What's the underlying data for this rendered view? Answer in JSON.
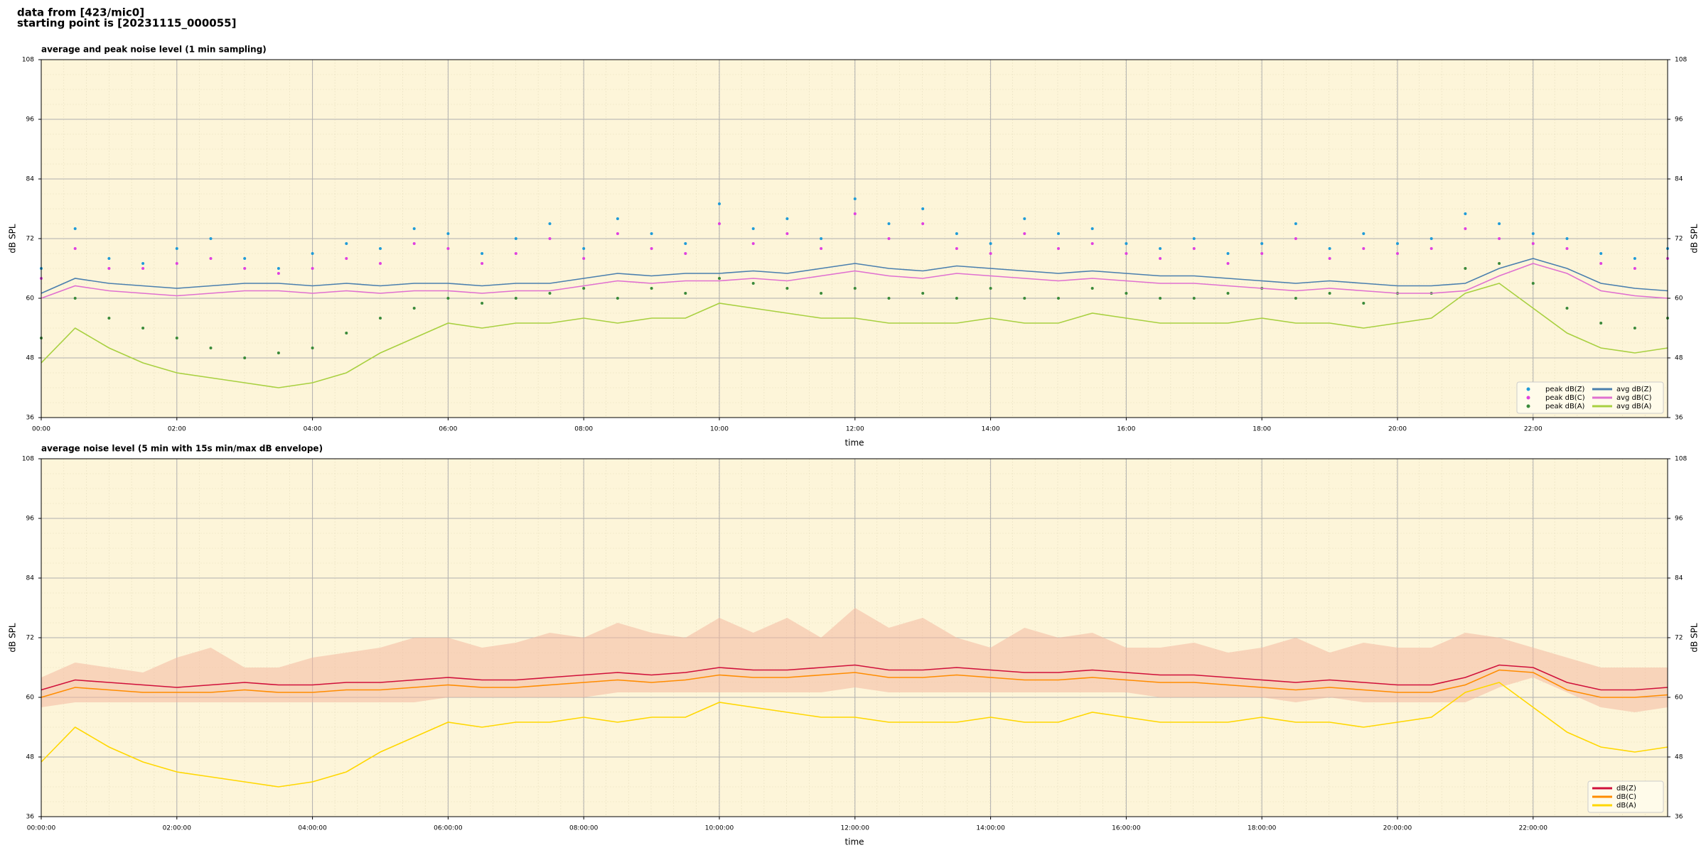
{
  "header": {
    "lines": [
      "data from [423/mic0]",
      "starting point is [20231115_000055]"
    ]
  },
  "chart_data": [
    {
      "type": "line",
      "title": "average and peak noise level (1 min sampling)",
      "xlabel": "time",
      "ylabel": "dB SPL",
      "x": [
        "00:00",
        "00:30",
        "01:00",
        "01:30",
        "02:00",
        "02:30",
        "03:00",
        "03:30",
        "04:00",
        "04:30",
        "05:00",
        "05:30",
        "06:00",
        "06:30",
        "07:00",
        "07:30",
        "08:00",
        "08:30",
        "09:00",
        "09:30",
        "10:00",
        "10:30",
        "11:00",
        "11:30",
        "12:00",
        "12:30",
        "13:00",
        "13:30",
        "14:00",
        "14:30",
        "15:00",
        "15:30",
        "16:00",
        "16:30",
        "17:00",
        "17:30",
        "18:00",
        "18:30",
        "19:00",
        "19:30",
        "20:00",
        "20:30",
        "21:00",
        "21:30",
        "22:00",
        "22:30",
        "23:00",
        "23:30",
        "23:59"
      ],
      "xlim": [
        "00:00",
        "23:59"
      ],
      "xticks": [
        "00:00",
        "02:00",
        "04:00",
        "06:00",
        "08:00",
        "10:00",
        "12:00",
        "14:00",
        "16:00",
        "18:00",
        "20:00",
        "22:00"
      ],
      "ylim": [
        36,
        108
      ],
      "yticks": [
        36,
        48,
        60,
        72,
        84,
        96,
        108
      ],
      "grid": true,
      "legend": "lower right",
      "legend_columns": 2,
      "series": [
        {
          "name": "peak dB(Z)",
          "kind": "scatter",
          "color": "#1f9bd8",
          "values": [
            66,
            74,
            68,
            67,
            70,
            72,
            68,
            66,
            69,
            71,
            70,
            74,
            73,
            69,
            72,
            75,
            70,
            76,
            73,
            71,
            79,
            74,
            76,
            72,
            80,
            75,
            78,
            73,
            71,
            76,
            73,
            74,
            71,
            70,
            72,
            69,
            71,
            75,
            70,
            73,
            71,
            72,
            77,
            75,
            73,
            72,
            69,
            68,
            70
          ]
        },
        {
          "name": "peak dB(C)",
          "kind": "scatter",
          "color": "#e040e0",
          "values": [
            64,
            70,
            66,
            66,
            67,
            68,
            66,
            65,
            66,
            68,
            67,
            71,
            70,
            67,
            69,
            72,
            68,
            73,
            70,
            69,
            75,
            71,
            73,
            70,
            77,
            72,
            75,
            70,
            69,
            73,
            70,
            71,
            69,
            68,
            70,
            67,
            69,
            72,
            68,
            70,
            69,
            70,
            74,
            72,
            71,
            70,
            67,
            66,
            68
          ]
        },
        {
          "name": "peak dB(A)",
          "kind": "scatter",
          "color": "#3a8a3a",
          "values": [
            52,
            60,
            56,
            54,
            52,
            50,
            48,
            49,
            50,
            53,
            56,
            58,
            60,
            59,
            60,
            61,
            62,
            60,
            62,
            61,
            64,
            63,
            62,
            61,
            62,
            60,
            61,
            60,
            62,
            60,
            60,
            62,
            61,
            60,
            60,
            61,
            62,
            60,
            61,
            59,
            61,
            61,
            66,
            67,
            63,
            58,
            55,
            54,
            56
          ]
        },
        {
          "name": "avg dB(Z)",
          "kind": "line",
          "color": "#4a7fae",
          "values": [
            61,
            64,
            63,
            62.5,
            62,
            62.5,
            63,
            63,
            62.5,
            63,
            62.5,
            63,
            63,
            62.5,
            63,
            63,
            64,
            65,
            64.5,
            65,
            65,
            65.5,
            65,
            66,
            67,
            66,
            65.5,
            66.5,
            66,
            65.5,
            65,
            65.5,
            65,
            64.5,
            64.5,
            64,
            63.5,
            63,
            63.5,
            63,
            62.5,
            62.5,
            63,
            66,
            68,
            66,
            63,
            62,
            61.5
          ]
        },
        {
          "name": "avg dB(C)",
          "kind": "line",
          "color": "#e070d0",
          "values": [
            60,
            62.5,
            61.5,
            61,
            60.5,
            61,
            61.5,
            61.5,
            61,
            61.5,
            61,
            61.5,
            61.5,
            61,
            61.5,
            61.5,
            62.5,
            63.5,
            63,
            63.5,
            63.5,
            64,
            63.5,
            64.5,
            65.5,
            64.5,
            64,
            65,
            64.5,
            64,
            63.5,
            64,
            63.5,
            63,
            63,
            62.5,
            62,
            61.5,
            62,
            61.5,
            61,
            61,
            61.5,
            64.5,
            67,
            65,
            61.5,
            60.5,
            60
          ]
        },
        {
          "name": "avg dB(A)",
          "kind": "line",
          "color": "#a8d040",
          "values": [
            47,
            54,
            50,
            47,
            45,
            44,
            43,
            42,
            43,
            45,
            49,
            52,
            55,
            54,
            55,
            55,
            56,
            55,
            56,
            56,
            59,
            58,
            57,
            56,
            56,
            55,
            55,
            55,
            56,
            55,
            55,
            57,
            56,
            55,
            55,
            55,
            56,
            55,
            55,
            54,
            55,
            56,
            61,
            63,
            58,
            53,
            50,
            49,
            50
          ]
        }
      ]
    },
    {
      "type": "line",
      "title": "average noise level (5 min with 15s min/max dB envelope)",
      "xlabel": "time",
      "ylabel": "dB SPL",
      "x": [
        "00:00:00",
        "00:30:00",
        "01:00:00",
        "01:30:00",
        "02:00:00",
        "02:30:00",
        "03:00:00",
        "03:30:00",
        "04:00:00",
        "04:30:00",
        "05:00:00",
        "05:30:00",
        "06:00:00",
        "06:30:00",
        "07:00:00",
        "07:30:00",
        "08:00:00",
        "08:30:00",
        "09:00:00",
        "09:30:00",
        "10:00:00",
        "10:30:00",
        "11:00:00",
        "11:30:00",
        "12:00:00",
        "12:30:00",
        "13:00:00",
        "13:30:00",
        "14:00:00",
        "14:30:00",
        "15:00:00",
        "15:30:00",
        "16:00:00",
        "16:30:00",
        "17:00:00",
        "17:30:00",
        "18:00:00",
        "18:30:00",
        "19:00:00",
        "19:30:00",
        "20:00:00",
        "20:30:00",
        "21:00:00",
        "21:30:00",
        "22:00:00",
        "22:30:00",
        "23:00:00",
        "23:30:00",
        "23:59:00"
      ],
      "xlim": [
        "00:00:00",
        "23:59:00"
      ],
      "xticks": [
        "00:00:00",
        "02:00:00",
        "04:00:00",
        "06:00:00",
        "08:00:00",
        "10:00:00",
        "12:00:00",
        "14:00:00",
        "16:00:00",
        "18:00:00",
        "20:00:00",
        "22:00:00"
      ],
      "ylim": [
        36,
        108
      ],
      "yticks": [
        36,
        48,
        60,
        72,
        84,
        96,
        108
      ],
      "grid": true,
      "legend": "lower right",
      "legend_columns": 1,
      "envelope": {
        "color": "#f4b8a0",
        "upper": [
          64,
          67,
          66,
          65,
          68,
          70,
          66,
          66,
          68,
          69,
          70,
          72,
          72,
          70,
          71,
          73,
          72,
          75,
          73,
          72,
          76,
          73,
          76,
          72,
          78,
          74,
          76,
          72,
          70,
          74,
          72,
          73,
          70,
          70,
          71,
          69,
          70,
          72,
          69,
          71,
          70,
          70,
          73,
          72,
          70,
          68,
          66,
          66,
          66
        ],
        "lower": [
          58,
          59,
          59,
          59,
          59,
          59,
          59,
          59,
          59,
          59,
          59,
          59,
          60,
          60,
          60,
          60,
          60,
          61,
          61,
          61,
          61,
          61,
          61,
          61,
          62,
          61,
          61,
          61,
          61,
          61,
          61,
          61,
          61,
          60,
          60,
          60,
          60,
          59,
          60,
          59,
          59,
          59,
          59,
          62,
          64,
          61,
          58,
          57,
          58
        ]
      },
      "series": [
        {
          "name": "dB(Z)",
          "kind": "line",
          "color": "#d0103a",
          "values": [
            61.5,
            63.5,
            63,
            62.5,
            62,
            62.5,
            63,
            62.5,
            62.5,
            63,
            63,
            63.5,
            64,
            63.5,
            63.5,
            64,
            64.5,
            65,
            64.5,
            65,
            66,
            65.5,
            65.5,
            66,
            66.5,
            65.5,
            65.5,
            66,
            65.5,
            65,
            65,
            65.5,
            65,
            64.5,
            64.5,
            64,
            63.5,
            63,
            63.5,
            63,
            62.5,
            62.5,
            64,
            66.5,
            66,
            63,
            61.5,
            61.5,
            62
          ]
        },
        {
          "name": "dB(C)",
          "kind": "line",
          "color": "#ff8c00",
          "values": [
            60,
            62,
            61.5,
            61,
            61,
            61,
            61.5,
            61,
            61,
            61.5,
            61.5,
            62,
            62.5,
            62,
            62,
            62.5,
            63,
            63.5,
            63,
            63.5,
            64.5,
            64,
            64,
            64.5,
            65,
            64,
            64,
            64.5,
            64,
            63.5,
            63.5,
            64,
            63.5,
            63,
            63,
            62.5,
            62,
            61.5,
            62,
            61.5,
            61,
            61,
            62.5,
            65.5,
            65,
            61.5,
            60,
            60,
            60.5
          ]
        },
        {
          "name": "dB(A)",
          "kind": "line",
          "color": "#ffd700",
          "values": [
            47,
            54,
            50,
            47,
            45,
            44,
            43,
            42,
            43,
            45,
            49,
            52,
            55,
            54,
            55,
            55,
            56,
            55,
            56,
            56,
            59,
            58,
            57,
            56,
            56,
            55,
            55,
            55,
            56,
            55,
            55,
            57,
            56,
            55,
            55,
            55,
            56,
            55,
            55,
            54,
            55,
            56,
            61,
            63,
            58,
            53,
            50,
            49,
            50
          ]
        }
      ]
    }
  ]
}
